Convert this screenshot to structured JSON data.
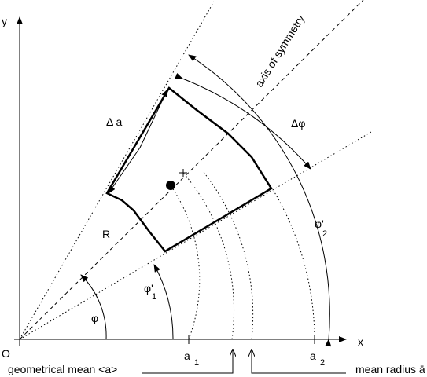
{
  "labels": {
    "y_axis": "y",
    "x_axis": "x",
    "origin": "O",
    "axis_of_symmetry": "axis of symmetry",
    "delta_a": "Δ a",
    "delta_phi": "Δφ",
    "radius": "R",
    "phi": "φ",
    "phi_prime_1": {
      "base": "φ'",
      "sub": "1"
    },
    "phi_prime_2": {
      "base": "φ'",
      "sub": "2"
    },
    "a_1": {
      "base": "a",
      "sub": "1"
    },
    "a_2": {
      "base": "a",
      "sub": "2"
    },
    "geometrical_mean": "geometrical mean  <a>",
    "mean_radius": "mean radius ā"
  }
}
